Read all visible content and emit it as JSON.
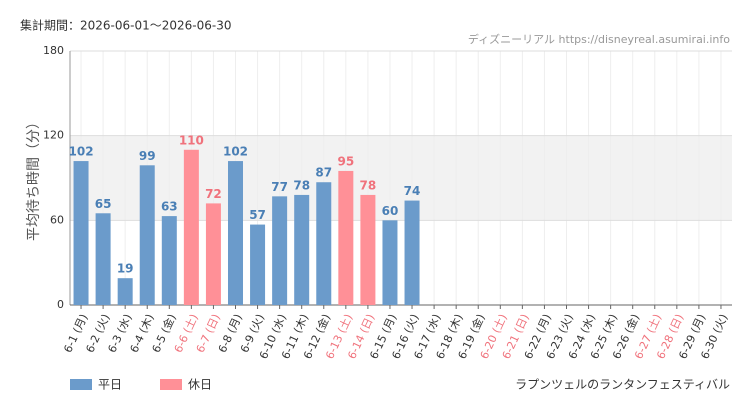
{
  "chart_data": {
    "type": "bar",
    "title": "集計期間：2026-06-01～2026-06-30",
    "source": "ディズニーリアル https://disneyreal.asumirai.info",
    "ylabel": "平均待ち時間（分）",
    "footer": "ラプンツェルのランタンフェスティバル",
    "categories": [
      "6-1 (月)",
      "6-2 (火)",
      "6-3 (水)",
      "6-4 (木)",
      "6-5 (金)",
      "6-6 (土)",
      "6-7 (日)",
      "6-8 (月)",
      "6-9 (火)",
      "6-10 (水)",
      "6-11 (木)",
      "6-12 (金)",
      "6-13 (土)",
      "6-14 (日)",
      "6-15 (月)",
      "6-16 (火)",
      "6-17 (水)",
      "6-18 (木)",
      "6-19 (金)",
      "6-20 (土)",
      "6-21 (日)",
      "6-22 (月)",
      "6-23 (火)",
      "6-24 (水)",
      "6-25 (木)",
      "6-26 (金)",
      "6-27 (土)",
      "6-28 (日)",
      "6-29 (月)",
      "6-30 (火)"
    ],
    "category_colors": [
      "#333",
      "#333",
      "#333",
      "#333",
      "#333",
      "#f0727c",
      "#f0727c",
      "#333",
      "#333",
      "#333",
      "#333",
      "#333",
      "#f0727c",
      "#f0727c",
      "#333",
      "#333",
      "#333",
      "#333",
      "#333",
      "#f0727c",
      "#f0727c",
      "#333",
      "#333",
      "#333",
      "#333",
      "#333",
      "#f0727c",
      "#f0727c",
      "#333",
      "#333"
    ],
    "series": [
      {
        "name": "平日",
        "color": "#6b9bcb",
        "label_color": "#4a7fb5",
        "values": [
          102,
          65,
          19,
          99,
          63,
          null,
          null,
          102,
          57,
          77,
          78,
          87,
          null,
          null,
          60,
          74,
          null,
          null,
          null,
          null,
          null,
          null,
          null,
          null,
          null,
          null,
          null,
          null,
          null,
          null
        ]
      },
      {
        "name": "休日",
        "color": "#ff9097",
        "label_color": "#f0727c",
        "values": [
          null,
          null,
          null,
          null,
          null,
          110,
          72,
          null,
          null,
          null,
          null,
          null,
          95,
          78,
          null,
          null,
          null,
          null,
          null,
          null,
          null,
          null,
          null,
          null,
          null,
          null,
          null,
          null,
          null,
          null
        ]
      }
    ],
    "ylim": [
      0,
      180
    ],
    "yticks": [
      0,
      60,
      120,
      180
    ],
    "grid": true,
    "shaded_band": {
      "from": 60,
      "to": 120,
      "color": "#f2f2f2"
    }
  }
}
